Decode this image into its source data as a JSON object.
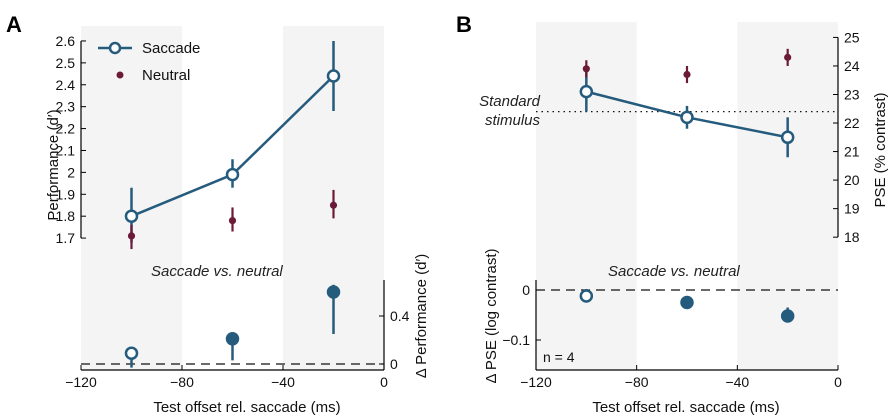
{
  "colors": {
    "saccade": "#255b7d",
    "neutral": "#6b1a38",
    "shade": "#f4f4f4",
    "axis": "#000000"
  },
  "chart_data": [
    {
      "panel_label": "A",
      "type": "line",
      "xlabel": "Test offset rel. saccade (ms)",
      "xlim": [
        -120,
        0
      ],
      "xticks": [
        -120,
        -80,
        -40,
        0
      ],
      "xtick_labels": [
        "−120",
        "−80",
        "−40",
        "0"
      ],
      "shaded_ranges": [
        [
          -120,
          -80
        ],
        [
          -40,
          0
        ]
      ],
      "main": {
        "ylabel": "Performance (d′)",
        "ylim": [
          1.6,
          2.65
        ],
        "yticks": [
          1.7,
          1.8,
          1.9,
          2,
          2.1,
          2.2,
          2.3,
          2.4,
          2.5,
          2.6
        ],
        "ytick_labels": [
          "1.7",
          "1.8",
          "1.9",
          "2",
          "2.1",
          "2.2",
          "2.3",
          "2.4",
          "2.5",
          "2.6"
        ],
        "legend": [
          "Saccade",
          "Neutral"
        ],
        "legend_position": "top-left",
        "series": [
          {
            "name": "Saccade",
            "x": [
              -100,
              -60,
              -20
            ],
            "y": [
              1.8,
              1.99,
              2.44
            ],
            "err_low": [
              1.68,
              1.93,
              2.28
            ],
            "err_high": [
              1.93,
              2.06,
              2.6
            ]
          },
          {
            "name": "Neutral",
            "x": [
              -100,
              -60,
              -20
            ],
            "y": [
              1.71,
              1.78,
              1.85
            ],
            "err_low": [
              1.65,
              1.73,
              1.79
            ],
            "err_high": [
              1.76,
              1.84,
              1.92
            ]
          }
        ]
      },
      "difference": {
        "annotation": "Saccade vs. neutral",
        "ylabel": "Δ Performance (d′)",
        "ylim": [
          -0.05,
          0.7
        ],
        "yticks": [
          0,
          0.4
        ],
        "ytick_labels": [
          "0",
          "0.4"
        ],
        "x": [
          -100,
          -60,
          -20
        ],
        "y": [
          0.09,
          0.21,
          0.6
        ],
        "err_low": [
          -0.03,
          0.03,
          0.25
        ],
        "err_high": [
          0.09,
          0.22,
          0.66
        ],
        "reference_line": 0
      }
    },
    {
      "panel_label": "B",
      "type": "line",
      "xlabel": "Test offset rel. saccade (ms)",
      "xlim": [
        -120,
        0
      ],
      "xticks": [
        -120,
        -80,
        -40,
        0
      ],
      "xtick_labels": [
        "−120",
        "−80",
        "−40",
        "0"
      ],
      "shaded_ranges": [
        [
          -120,
          -80
        ],
        [
          -40,
          0
        ]
      ],
      "main": {
        "ylabel": "PSE (% contrast)",
        "ylim": [
          17.2,
          25.4
        ],
        "yticks": [
          18,
          19,
          20,
          21,
          22,
          23,
          24,
          25
        ],
        "ytick_labels": [
          "18",
          "19",
          "20",
          "21",
          "22",
          "23",
          "24",
          "25"
        ],
        "reference_line": 22.4,
        "reference_label": [
          "Standard",
          "stimulus"
        ],
        "series": [
          {
            "name": "Saccade",
            "x": [
              -100,
              -60,
              -20
            ],
            "y": [
              23.1,
              22.2,
              21.5
            ],
            "err_low": [
              22.4,
              21.8,
              20.8
            ],
            "err_high": [
              23.8,
              22.6,
              22.2
            ]
          },
          {
            "name": "Neutral",
            "x": [
              -100,
              -60,
              -20
            ],
            "y": [
              23.9,
              23.7,
              24.3
            ],
            "err_low": [
              23.6,
              23.4,
              24.0
            ],
            "err_high": [
              24.2,
              24.0,
              24.6
            ]
          }
        ]
      },
      "difference": {
        "annotation": "Saccade vs. neutral",
        "ylabel": "Δ PSE (log contrast)",
        "ylim": [
          -0.16,
          0.02
        ],
        "yticks": [
          0,
          -0.1
        ],
        "ytick_labels": [
          "0",
          "−0.1"
        ],
        "x": [
          -100,
          -60,
          -20
        ],
        "y": [
          -0.012,
          -0.025,
          -0.052
        ],
        "err_low": [
          -0.022,
          -0.033,
          -0.065
        ],
        "err_high": [
          0.002,
          -0.017,
          -0.035
        ],
        "reference_line": 0,
        "n_label": "n = 4"
      }
    }
  ]
}
